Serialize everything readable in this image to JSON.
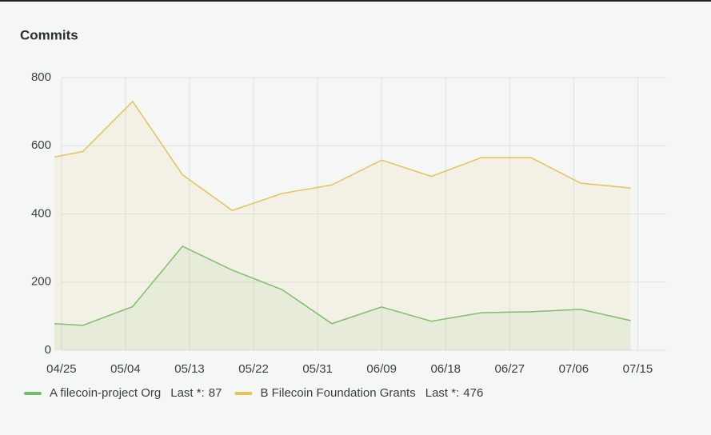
{
  "chart_data": {
    "type": "line",
    "title": "Commits",
    "x": [
      "04/24",
      "04/28",
      "05/05",
      "05/12",
      "05/19",
      "05/26",
      "06/02",
      "06/09",
      "06/16",
      "06/23",
      "06/30",
      "07/07",
      "07/14"
    ],
    "series": [
      {
        "name": "A filecoin-project Org",
        "color": "#73bf69",
        "values": [
          78,
          73,
          128,
          305,
          235,
          178,
          78,
          127,
          85,
          110,
          113,
          120,
          87
        ]
      },
      {
        "name": "B Filecoin Foundation Grants",
        "color": "#e5c25a",
        "values": [
          567,
          583,
          730,
          515,
          410,
          460,
          485,
          558,
          510,
          565,
          565,
          490,
          476
        ]
      }
    ],
    "legend_stat": "Last *:",
    "xlim": [
      "04/24",
      "07/19"
    ],
    "xticks": [
      "04/25",
      "05/04",
      "05/13",
      "05/22",
      "05/31",
      "06/09",
      "06/18",
      "06/27",
      "07/06",
      "07/15"
    ],
    "ylim": [
      0,
      800
    ],
    "yticks": [
      0,
      200,
      400,
      600,
      800
    ],
    "grid": true,
    "legend": "bottom-left",
    "fill_area": true
  }
}
